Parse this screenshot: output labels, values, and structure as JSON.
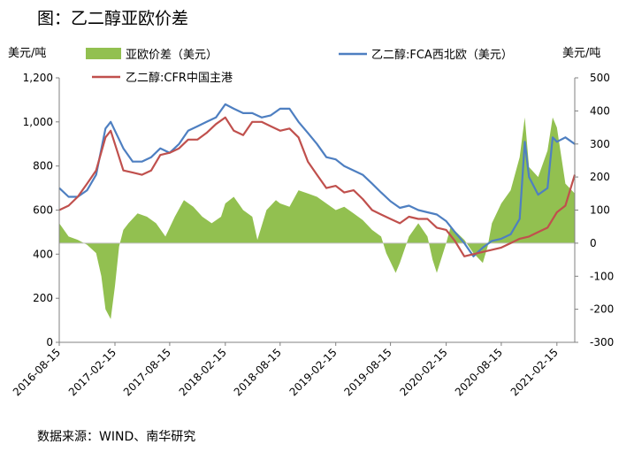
{
  "header": {
    "title": "图：乙二醇亚欧价差"
  },
  "footer": {
    "source": "数据来源：WIND、南华研究"
  },
  "chart_data": {
    "type": "line",
    "left_unit": "美元/吨",
    "right_unit": "美元/吨",
    "left_axis": {
      "ylim": [
        0,
        1200
      ],
      "ticks": [
        "0",
        "200",
        "400",
        "600",
        "800",
        "1,000",
        "1,200"
      ]
    },
    "right_axis": {
      "ylim": [
        -300,
        500
      ],
      "ticks": [
        "-300",
        "-200",
        "-100",
        "0",
        "100",
        "200",
        "300",
        "400",
        "500"
      ]
    },
    "x_axis": {
      "range": [
        "2016-08-15",
        "2021-04-15"
      ],
      "ticks": [
        "2016-08-15",
        "2017-02-15",
        "2017-08-15",
        "2018-02-15",
        "2018-08-15",
        "2019-02-15",
        "2019-08-15",
        "2020-02-15",
        "2020-08-15",
        "2021-02-15"
      ]
    },
    "grid": false,
    "legend_position": "top",
    "series": [
      {
        "name": "亚欧价差（美元）",
        "kind": "area",
        "axis": "right",
        "color": "#92c050",
        "points": [
          [
            "2016-08-15",
            60
          ],
          [
            "2016-09-15",
            20
          ],
          [
            "2016-10-15",
            10
          ],
          [
            "2016-11-15",
            -5
          ],
          [
            "2016-12-15",
            -30
          ],
          [
            "2017-01-01",
            -100
          ],
          [
            "2017-01-15",
            -200
          ],
          [
            "2017-02-01",
            -230
          ],
          [
            "2017-02-15",
            -130
          ],
          [
            "2017-03-01",
            -10
          ],
          [
            "2017-03-15",
            40
          ],
          [
            "2017-04-01",
            60
          ],
          [
            "2017-05-01",
            90
          ],
          [
            "2017-06-01",
            80
          ],
          [
            "2017-07-01",
            60
          ],
          [
            "2017-08-01",
            20
          ],
          [
            "2017-09-01",
            80
          ],
          [
            "2017-10-01",
            130
          ],
          [
            "2017-11-01",
            110
          ],
          [
            "2017-12-01",
            80
          ],
          [
            "2018-01-01",
            60
          ],
          [
            "2018-02-01",
            80
          ],
          [
            "2018-02-15",
            120
          ],
          [
            "2018-03-15",
            140
          ],
          [
            "2018-04-15",
            100
          ],
          [
            "2018-05-15",
            80
          ],
          [
            "2018-06-01",
            10
          ],
          [
            "2018-07-01",
            100
          ],
          [
            "2018-08-01",
            130
          ],
          [
            "2018-08-15",
            120
          ],
          [
            "2018-09-15",
            110
          ],
          [
            "2018-10-15",
            160
          ],
          [
            "2018-11-15",
            150
          ],
          [
            "2018-12-15",
            140
          ],
          [
            "2019-01-15",
            120
          ],
          [
            "2019-02-15",
            100
          ],
          [
            "2019-03-15",
            110
          ],
          [
            "2019-04-15",
            90
          ],
          [
            "2019-05-15",
            70
          ],
          [
            "2019-06-15",
            40
          ],
          [
            "2019-07-15",
            20
          ],
          [
            "2019-08-01",
            -30
          ],
          [
            "2019-09-01",
            -90
          ],
          [
            "2019-09-15",
            -60
          ],
          [
            "2019-10-15",
            20
          ],
          [
            "2019-11-15",
            60
          ],
          [
            "2019-12-15",
            20
          ],
          [
            "2020-01-01",
            -50
          ],
          [
            "2020-01-15",
            -90
          ],
          [
            "2020-02-15",
            0
          ],
          [
            "2020-03-01",
            50
          ],
          [
            "2020-04-15",
            10
          ],
          [
            "2020-05-15",
            -30
          ],
          [
            "2020-06-15",
            -60
          ],
          [
            "2020-07-01",
            -10
          ],
          [
            "2020-07-15",
            60
          ],
          [
            "2020-08-15",
            120
          ],
          [
            "2020-09-15",
            160
          ],
          [
            "2020-10-15",
            260
          ],
          [
            "2020-11-01",
            380
          ],
          [
            "2020-11-15",
            230
          ],
          [
            "2020-12-15",
            200
          ],
          [
            "2021-01-15",
            280
          ],
          [
            "2021-02-01",
            380
          ],
          [
            "2021-02-15",
            350
          ],
          [
            "2021-03-15",
            180
          ],
          [
            "2021-04-15",
            150
          ]
        ]
      },
      {
        "name": "乙二醇:FCA西北欧（美元）",
        "kind": "line",
        "axis": "left",
        "color": "#4e7fc1",
        "points": [
          [
            "2016-08-15",
            700
          ],
          [
            "2016-09-15",
            660
          ],
          [
            "2016-10-15",
            660
          ],
          [
            "2016-11-15",
            690
          ],
          [
            "2016-12-15",
            760
          ],
          [
            "2017-01-15",
            970
          ],
          [
            "2017-02-01",
            1000
          ],
          [
            "2017-02-15",
            960
          ],
          [
            "2017-03-15",
            880
          ],
          [
            "2017-04-15",
            820
          ],
          [
            "2017-05-15",
            820
          ],
          [
            "2017-06-15",
            840
          ],
          [
            "2017-07-15",
            880
          ],
          [
            "2017-08-15",
            860
          ],
          [
            "2017-09-15",
            900
          ],
          [
            "2017-10-15",
            960
          ],
          [
            "2017-11-15",
            980
          ],
          [
            "2017-12-15",
            1000
          ],
          [
            "2018-01-15",
            1020
          ],
          [
            "2018-02-15",
            1080
          ],
          [
            "2018-03-15",
            1060
          ],
          [
            "2018-04-15",
            1040
          ],
          [
            "2018-05-15",
            1040
          ],
          [
            "2018-06-15",
            1020
          ],
          [
            "2018-07-15",
            1030
          ],
          [
            "2018-08-15",
            1060
          ],
          [
            "2018-09-15",
            1060
          ],
          [
            "2018-10-15",
            1000
          ],
          [
            "2018-11-15",
            950
          ],
          [
            "2018-12-15",
            900
          ],
          [
            "2019-01-15",
            840
          ],
          [
            "2019-02-15",
            830
          ],
          [
            "2019-03-15",
            800
          ],
          [
            "2019-04-15",
            780
          ],
          [
            "2019-05-15",
            760
          ],
          [
            "2019-06-15",
            720
          ],
          [
            "2019-07-15",
            680
          ],
          [
            "2019-08-15",
            640
          ],
          [
            "2019-09-15",
            610
          ],
          [
            "2019-10-15",
            620
          ],
          [
            "2019-11-15",
            600
          ],
          [
            "2019-12-15",
            590
          ],
          [
            "2020-01-15",
            580
          ],
          [
            "2020-02-15",
            550
          ],
          [
            "2020-03-15",
            500
          ],
          [
            "2020-04-15",
            450
          ],
          [
            "2020-05-15",
            390
          ],
          [
            "2020-06-15",
            430
          ],
          [
            "2020-07-15",
            460
          ],
          [
            "2020-08-15",
            470
          ],
          [
            "2020-09-15",
            490
          ],
          [
            "2020-10-15",
            560
          ],
          [
            "2020-11-01",
            910
          ],
          [
            "2020-11-15",
            750
          ],
          [
            "2020-12-15",
            670
          ],
          [
            "2021-01-15",
            700
          ],
          [
            "2021-02-01",
            930
          ],
          [
            "2021-02-15",
            910
          ],
          [
            "2021-03-15",
            930
          ],
          [
            "2021-04-15",
            900
          ]
        ]
      },
      {
        "name": "乙二醇:CFR中国主港",
        "kind": "line",
        "axis": "left",
        "color": "#c0504d",
        "points": [
          [
            "2016-08-15",
            600
          ],
          [
            "2016-09-15",
            620
          ],
          [
            "2016-10-15",
            660
          ],
          [
            "2016-11-15",
            720
          ],
          [
            "2016-12-15",
            780
          ],
          [
            "2017-01-15",
            930
          ],
          [
            "2017-02-01",
            960
          ],
          [
            "2017-02-15",
            900
          ],
          [
            "2017-03-15",
            780
          ],
          [
            "2017-04-15",
            770
          ],
          [
            "2017-05-15",
            760
          ],
          [
            "2017-06-15",
            780
          ],
          [
            "2017-07-15",
            850
          ],
          [
            "2017-08-15",
            860
          ],
          [
            "2017-09-15",
            880
          ],
          [
            "2017-10-15",
            920
          ],
          [
            "2017-11-15",
            920
          ],
          [
            "2017-12-15",
            950
          ],
          [
            "2018-01-15",
            990
          ],
          [
            "2018-02-15",
            1020
          ],
          [
            "2018-03-15",
            960
          ],
          [
            "2018-04-15",
            940
          ],
          [
            "2018-05-15",
            1000
          ],
          [
            "2018-06-15",
            1000
          ],
          [
            "2018-07-15",
            980
          ],
          [
            "2018-08-15",
            960
          ],
          [
            "2018-09-15",
            970
          ],
          [
            "2018-10-15",
            930
          ],
          [
            "2018-11-15",
            820
          ],
          [
            "2018-12-15",
            760
          ],
          [
            "2019-01-15",
            700
          ],
          [
            "2019-02-15",
            710
          ],
          [
            "2019-03-15",
            680
          ],
          [
            "2019-04-15",
            690
          ],
          [
            "2019-05-15",
            650
          ],
          [
            "2019-06-15",
            600
          ],
          [
            "2019-07-15",
            580
          ],
          [
            "2019-08-15",
            560
          ],
          [
            "2019-09-15",
            540
          ],
          [
            "2019-10-15",
            570
          ],
          [
            "2019-11-15",
            560
          ],
          [
            "2019-12-15",
            560
          ],
          [
            "2020-01-15",
            520
          ],
          [
            "2020-02-15",
            510
          ],
          [
            "2020-03-15",
            460
          ],
          [
            "2020-04-15",
            390
          ],
          [
            "2020-05-15",
            400
          ],
          [
            "2020-06-15",
            410
          ],
          [
            "2020-07-15",
            420
          ],
          [
            "2020-08-15",
            430
          ],
          [
            "2020-09-15",
            450
          ],
          [
            "2020-10-15",
            470
          ],
          [
            "2020-11-15",
            480
          ],
          [
            "2020-12-15",
            500
          ],
          [
            "2021-01-15",
            520
          ],
          [
            "2021-02-15",
            590
          ],
          [
            "2021-03-15",
            620
          ],
          [
            "2021-04-15",
            760
          ]
        ]
      }
    ]
  }
}
